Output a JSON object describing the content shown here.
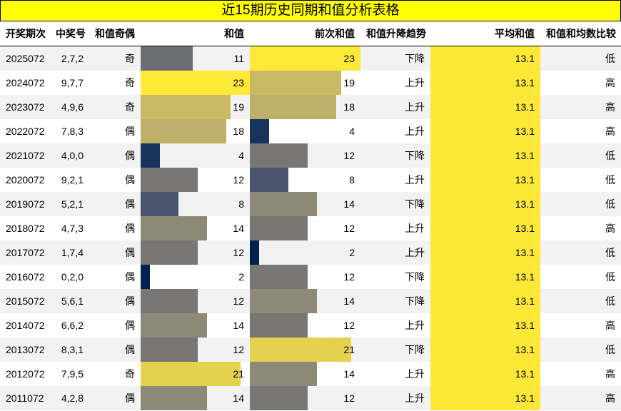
{
  "title": "近15期历史同期和值分析表格",
  "table": {
    "header": [
      "开奖期次",
      "中奖号",
      "和值奇偶",
      "和值",
      "前次和值",
      "和值升降趋势",
      "平均和值",
      "和值和均数比较"
    ],
    "rows": [
      [
        "2025072",
        "2,7,2",
        "奇",
        11,
        23,
        "下降",
        13.1,
        "低"
      ],
      [
        "2024072",
        "9,7,7",
        "奇",
        23,
        19,
        "上升",
        13.1,
        "高"
      ],
      [
        "2023072",
        "4,9,6",
        "奇",
        19,
        18,
        "上升",
        13.1,
        "高"
      ],
      [
        "2022072",
        "7,8,3",
        "偶",
        18,
        4,
        "上升",
        13.1,
        "高"
      ],
      [
        "2021072",
        "4,0,0",
        "偶",
        4,
        12,
        "下降",
        13.1,
        "低"
      ],
      [
        "2020072",
        "9,2,1",
        "偶",
        12,
        8,
        "上升",
        13.1,
        "低"
      ],
      [
        "2019072",
        "5,2,1",
        "偶",
        8,
        14,
        "下降",
        13.1,
        "低"
      ],
      [
        "2018072",
        "4,7,3",
        "偶",
        14,
        12,
        "上升",
        13.1,
        "高"
      ],
      [
        "2017072",
        "1,7,4",
        "偶",
        12,
        2,
        "上升",
        13.1,
        "低"
      ],
      [
        "2016072",
        "0,2,0",
        "偶",
        2,
        12,
        "下降",
        13.1,
        "低"
      ],
      [
        "2015072",
        "5,6,1",
        "偶",
        12,
        14,
        "下降",
        13.1,
        "低"
      ],
      [
        "2014072",
        "6,6,2",
        "偶",
        14,
        12,
        "上升",
        13.1,
        "高"
      ],
      [
        "2013072",
        "8,3,1",
        "偶",
        12,
        21,
        "下降",
        13.1,
        "低"
      ],
      [
        "2012072",
        "7,9,5",
        "奇",
        21,
        14,
        "上升",
        13.1,
        "高"
      ],
      [
        "2011072",
        "4,2,8",
        "偶",
        14,
        12,
        "上升",
        13.1,
        "高"
      ]
    ],
    "bar_colormap": [
      "#00224e",
      "#35456c",
      "#666970",
      "#948e77",
      "#c8b866",
      "#fee838"
    ],
    "highlight_color": "#fde737"
  }
}
